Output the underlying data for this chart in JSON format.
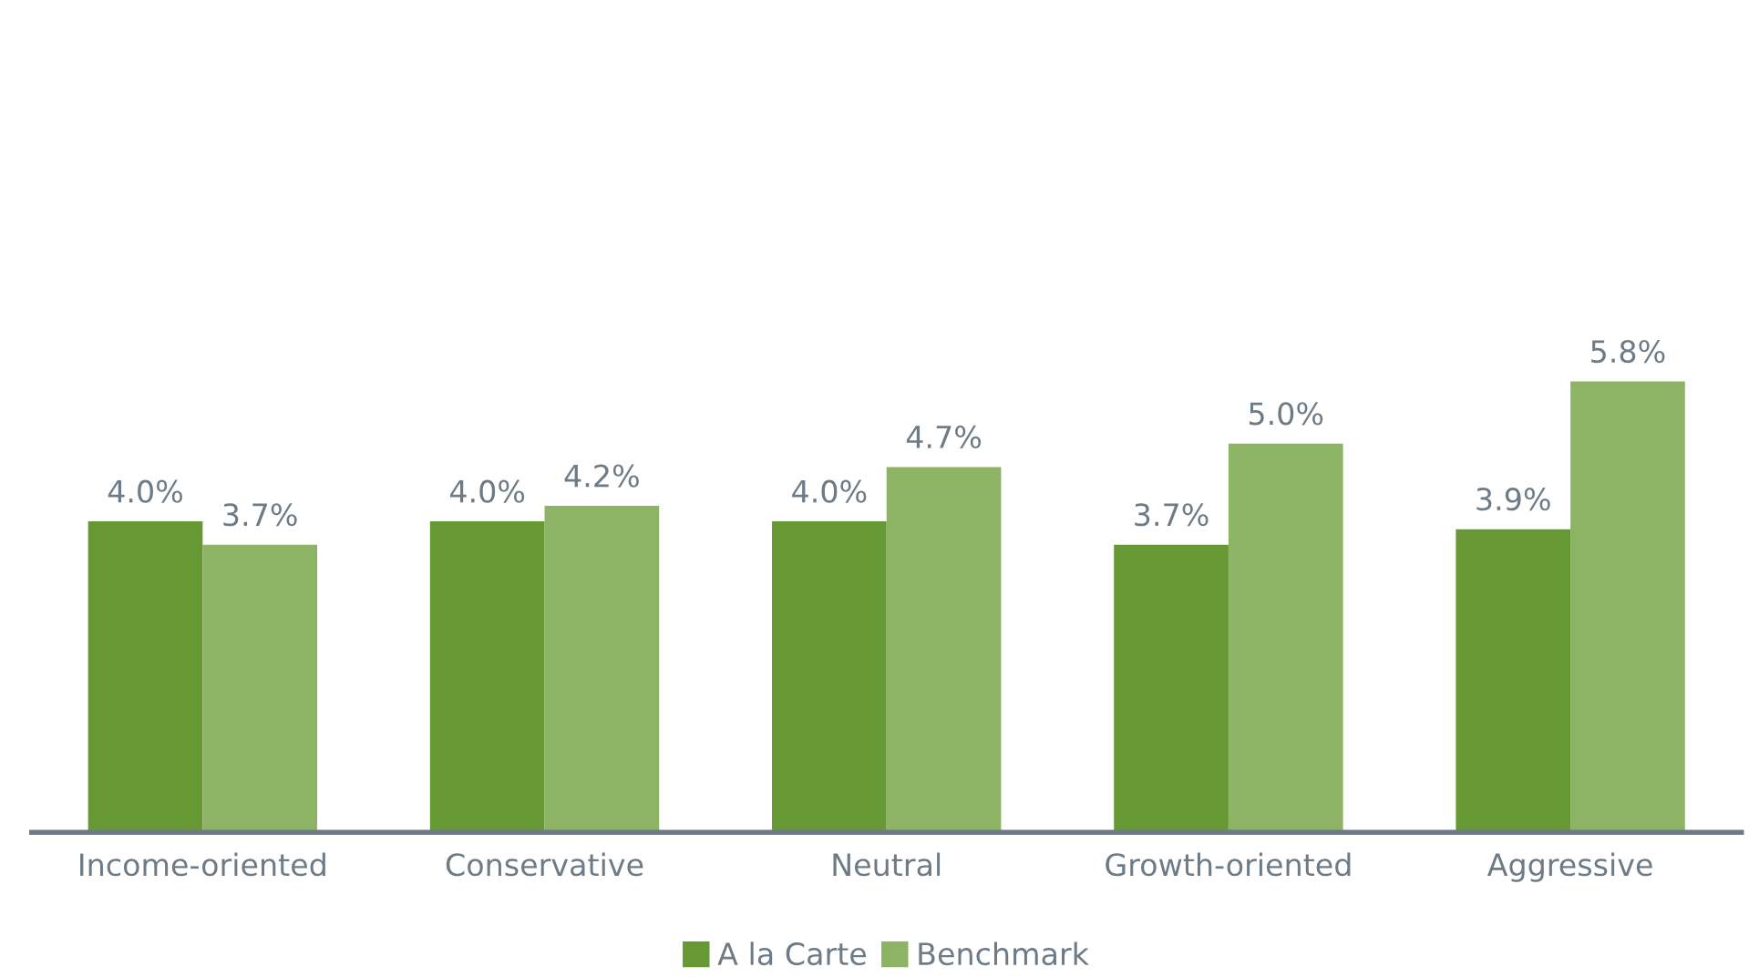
{
  "chart_data": {
    "type": "bar",
    "categories": [
      "Income-oriented",
      "Conservative",
      "Neutral",
      "Growth-oriented",
      "Aggressive"
    ],
    "series": [
      {
        "name": "A la Carte",
        "color": "#669933",
        "values": [
          4.0,
          4.0,
          4.0,
          3.7,
          3.9
        ],
        "value_labels": [
          "4.0%",
          "4.0%",
          "4.0%",
          "3.7%",
          "3.9%"
        ]
      },
      {
        "name": "Benchmark",
        "color": "#8db365",
        "values": [
          3.7,
          4.2,
          4.7,
          5.0,
          5.8
        ],
        "value_labels": [
          "3.7%",
          "4.2%",
          "4.7%",
          "5.0%",
          "5.8%"
        ]
      }
    ],
    "legend": "bottom",
    "grid": false,
    "tick_labels": "x"
  }
}
